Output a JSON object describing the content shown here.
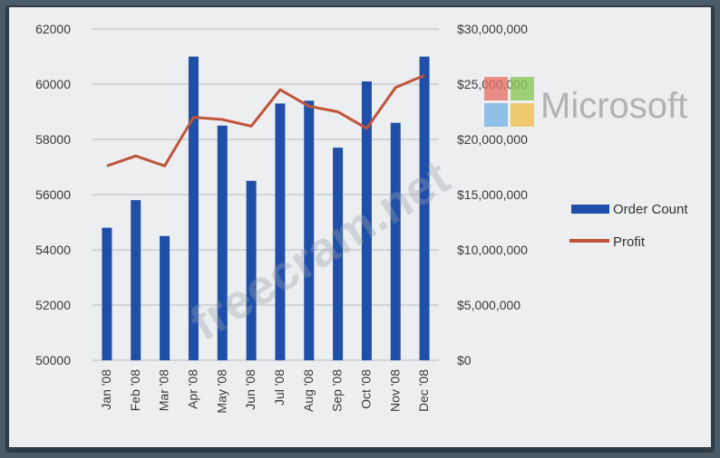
{
  "chart_data": {
    "type": "bar",
    "categories": [
      "Jan '08",
      "Feb '08",
      "Mar '08",
      "Apr '08",
      "May '08",
      "Jun '08",
      "Jul '08",
      "Aug '08",
      "Sep '08",
      "Oct '08",
      "Nov '08",
      "Dec '08"
    ],
    "series": [
      {
        "name": "Order Count",
        "type": "bar",
        "axis": "left",
        "color": "#1f4fa8",
        "values": [
          54800,
          55800,
          54500,
          61000,
          58500,
          56500,
          59300,
          59400,
          57700,
          60100,
          58600,
          61000
        ]
      },
      {
        "name": "Profit",
        "type": "line",
        "axis": "right",
        "color": "#c0553a",
        "values": [
          17600000,
          18500000,
          17600000,
          22000000,
          21800000,
          21200000,
          24500000,
          23000000,
          22500000,
          21000000,
          24700000,
          25800000
        ]
      }
    ],
    "ylim_left": [
      50000,
      62000
    ],
    "ylim_right": [
      0,
      30000000
    ],
    "yticks_left": [
      "50000",
      "52000",
      "54000",
      "56000",
      "58000",
      "60000",
      "62000"
    ],
    "yticks_right": [
      "$0",
      "$5,000,000",
      "$10,000,000",
      "$15,000,000",
      "$20,000,000",
      "$25,000,000",
      "$30,000,000"
    ],
    "legend_position": "right",
    "grid": true
  },
  "legend": {
    "items": [
      {
        "label": "Order Count",
        "color": "#1f4fa8"
      },
      {
        "label": "Profit",
        "color": "#c0553a"
      }
    ]
  },
  "watermark": {
    "logo_word": "Microsoft",
    "site_text": "freecram.net"
  }
}
